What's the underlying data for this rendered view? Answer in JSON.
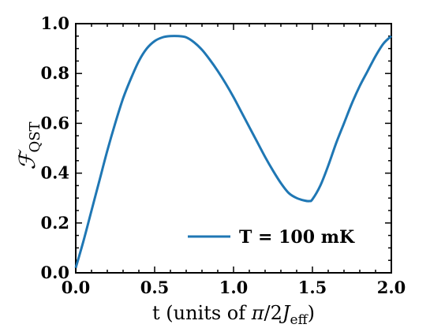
{
  "chart_data": {
    "type": "line",
    "title": "",
    "xlabel": {
      "main": "t (units of ",
      "symbol": "π",
      "sep": "/2",
      "var": "J",
      "sub": "eff",
      "close": ")"
    },
    "ylabel": {
      "main": "ℱ",
      "sub": "QST"
    },
    "xlim": [
      0,
      2.0
    ],
    "ylim": [
      0,
      1.0
    ],
    "xticks": [
      "0.0",
      "0.5",
      "1.0",
      "1.5",
      "2.0"
    ],
    "yticks": [
      "0.0",
      "0.2",
      "0.4",
      "0.6",
      "0.8",
      "1.0"
    ],
    "grid": false,
    "legend_position": "bottom-right",
    "series": [
      {
        "name": "T = 100 mK",
        "color": "#1f77b4",
        "x": [
          0.0,
          0.05,
          0.1,
          0.15,
          0.2,
          0.25,
          0.3,
          0.35,
          0.4,
          0.45,
          0.5,
          0.55,
          0.6,
          0.65,
          0.7,
          0.75,
          0.8,
          0.85,
          0.9,
          0.95,
          1.0,
          1.05,
          1.1,
          1.15,
          1.2,
          1.25,
          1.3,
          1.35,
          1.4,
          1.45,
          1.48,
          1.5,
          1.55,
          1.6,
          1.65,
          1.7,
          1.75,
          1.8,
          1.85,
          1.9,
          1.95,
          2.0
        ],
        "y": [
          0.02,
          0.13,
          0.25,
          0.37,
          0.49,
          0.6,
          0.7,
          0.78,
          0.85,
          0.9,
          0.93,
          0.945,
          0.95,
          0.95,
          0.945,
          0.925,
          0.895,
          0.855,
          0.81,
          0.76,
          0.705,
          0.645,
          0.585,
          0.525,
          0.465,
          0.41,
          0.36,
          0.32,
          0.3,
          0.29,
          0.288,
          0.295,
          0.35,
          0.43,
          0.52,
          0.6,
          0.68,
          0.75,
          0.81,
          0.87,
          0.92,
          0.95
        ]
      }
    ]
  }
}
